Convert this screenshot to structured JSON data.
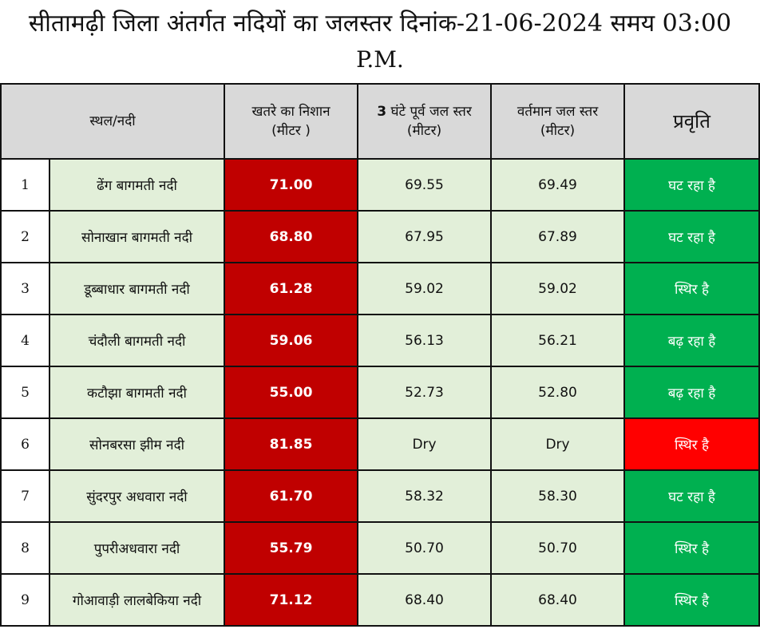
{
  "title": {
    "line1": "सीतामढ़ी जिला अंतर्गत नदियों का जलस्तर दिनांक-21-06-2024  समय 03:00",
    "line2": "P.M."
  },
  "headers": {
    "place": "स्थल/नदी",
    "danger_line1": "खतरे का निशान",
    "danger_line2": "(मीटर )",
    "prev_num": "3",
    "prev_line1": " घंटे पूर्व जल स्तर",
    "prev_line2": "(मीटर)",
    "current_line1": "वर्तमान जल स्तर",
    "current_line2": "(मीटर)",
    "trend": "प्रवृति"
  },
  "rows": [
    {
      "sn": "1",
      "place": "ढेंग बागमती नदी",
      "danger": "71.00",
      "prev": "69.55",
      "current": "69.49",
      "trend": "घट रहा है"
    },
    {
      "sn": "2",
      "place": "सोनाखान बागमती नदी",
      "danger": "68.80",
      "prev": "67.95",
      "current": "67.89",
      "trend": "घट रहा है"
    },
    {
      "sn": "3",
      "place": "डूब्बाधार  बागमती नदी",
      "danger": "61.28",
      "prev": "59.02",
      "current": "59.02",
      "trend": "स्थिर है"
    },
    {
      "sn": "4",
      "place": "चंदौली बागमती नदी",
      "danger": "59.06",
      "prev": "56.13",
      "current": "56.21",
      "trend": "बढ़ रहा है"
    },
    {
      "sn": "5",
      "place": "कटौझा बागमती नदी",
      "danger": "55.00",
      "prev": "52.73",
      "current": "52.80",
      "trend": "बढ़ रहा है"
    },
    {
      "sn": "6",
      "place": "सोनबरसा झीम नदी",
      "danger": "81.85",
      "prev": "Dry",
      "current": "Dry",
      "trend": "स्थिर है"
    },
    {
      "sn": "7",
      "place": "सुंदरपुर अधवारा नदी",
      "danger": "61.70",
      "prev": "58.32",
      "current": "58.30",
      "trend": "घट रहा है"
    },
    {
      "sn": "8",
      "place": "पुपरीअधवारा नदी",
      "danger": "55.79",
      "prev": "50.70",
      "current": "50.70",
      "trend": "स्थिर है"
    },
    {
      "sn": "9",
      "place": "गोआवाड़ी लालबेकिया नदी",
      "danger": "71.12",
      "prev": "68.40",
      "current": "68.40",
      "trend": "स्थिर है"
    }
  ],
  "colors": {
    "danger_cell": "#c00000",
    "trend_green": "#00b050",
    "trend_red": "#ff0000",
    "value_cell": "#e2efd9",
    "header": "#d9d9d9"
  }
}
